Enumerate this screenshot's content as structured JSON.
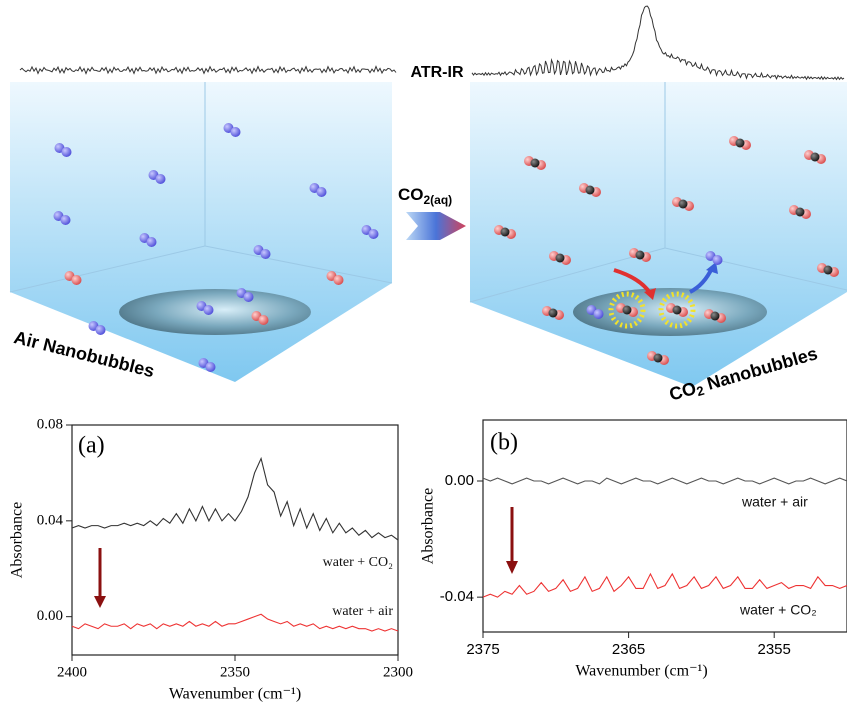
{
  "illustration": {
    "spectrum_label": "ATR-IR",
    "transfer_label": {
      "main": "CO",
      "sub": "2(aq)"
    },
    "left_label": "Air Nanobubbles",
    "right_label": {
      "main": "CO",
      "sub": "2",
      "rest": " Nanobubbles"
    }
  },
  "chart_data": [
    {
      "type": "line",
      "panel_label": "(a)",
      "xlabel": "Wavenumber (cm⁻¹)",
      "ylabel": "Absorbance",
      "xlim": [
        2400,
        2300
      ],
      "xticks": [
        2400,
        2350,
        2300
      ],
      "ylim": [
        -0.016,
        0.08
      ],
      "yticks": [
        {
          "value": 0,
          "label": "0.00"
        },
        {
          "value": 0.04,
          "label": "0.04"
        },
        {
          "value": 0.08,
          "label": "0.08"
        }
      ],
      "x": [
        2400,
        2398,
        2396,
        2394,
        2392,
        2390,
        2388,
        2386,
        2384,
        2382,
        2380,
        2378,
        2376,
        2374,
        2372,
        2370,
        2368,
        2366,
        2364,
        2362,
        2360,
        2358,
        2356,
        2354,
        2352,
        2350,
        2348,
        2346,
        2344,
        2342,
        2340,
        2338,
        2336,
        2334,
        2332,
        2330,
        2328,
        2326,
        2324,
        2322,
        2320,
        2318,
        2316,
        2314,
        2312,
        2310,
        2308,
        2306,
        2304,
        2302,
        2300
      ],
      "series": [
        {
          "name": "water + CO₂",
          "color": "#333333",
          "values": [
            0.037,
            0.038,
            0.037,
            0.038,
            0.038,
            0.037,
            0.038,
            0.038,
            0.039,
            0.038,
            0.039,
            0.038,
            0.04,
            0.038,
            0.041,
            0.039,
            0.043,
            0.039,
            0.045,
            0.04,
            0.046,
            0.04,
            0.045,
            0.04,
            0.043,
            0.04,
            0.044,
            0.05,
            0.06,
            0.066,
            0.055,
            0.052,
            0.042,
            0.048,
            0.038,
            0.045,
            0.037,
            0.043,
            0.036,
            0.041,
            0.035,
            0.039,
            0.035,
            0.037,
            0.034,
            0.036,
            0.033,
            0.035,
            0.033,
            0.034,
            0.032
          ]
        },
        {
          "name": "water + air",
          "color": "#ee3333",
          "values": [
            -0.004,
            -0.005,
            -0.003,
            -0.004,
            -0.005,
            -0.003,
            -0.004,
            -0.004,
            -0.003,
            -0.005,
            -0.003,
            -0.004,
            -0.003,
            -0.005,
            -0.003,
            -0.004,
            -0.003,
            -0.004,
            -0.002,
            -0.004,
            -0.003,
            -0.004,
            -0.002,
            -0.004,
            -0.003,
            -0.003,
            -0.002,
            -0.001,
            0.0,
            0.001,
            -0.001,
            -0.002,
            -0.003,
            -0.002,
            -0.004,
            -0.003,
            -0.004,
            -0.003,
            -0.005,
            -0.004,
            -0.005,
            -0.004,
            -0.005,
            -0.004,
            -0.005,
            -0.005,
            -0.006,
            -0.005,
            -0.006,
            -0.005,
            -0.006
          ]
        }
      ]
    },
    {
      "type": "line",
      "panel_label": "(b)",
      "xlabel": "Wavenumber (cm⁻¹)",
      "ylabel": "Absorbance",
      "xlim": [
        2375,
        2350
      ],
      "xticks": [
        2375,
        2365,
        2355
      ],
      "ylim": [
        -0.052,
        0.021
      ],
      "yticks": [
        {
          "value": 0,
          "label": "0.00"
        },
        -0.04
      ],
      "x": [
        2375,
        2374.5,
        2374,
        2373.5,
        2373,
        2372.5,
        2372,
        2371.5,
        2371,
        2370.5,
        2370,
        2369.5,
        2369,
        2368.5,
        2368,
        2367.5,
        2367,
        2366.5,
        2366,
        2365.5,
        2365,
        2364.5,
        2364,
        2363.5,
        2363,
        2362.5,
        2362,
        2361.5,
        2361,
        2360.5,
        2360,
        2359.5,
        2359,
        2358.5,
        2358,
        2357.5,
        2357,
        2356.5,
        2356,
        2355.5,
        2355,
        2354.5,
        2354,
        2353.5,
        2353,
        2352.5,
        2352,
        2351.5,
        2351,
        2350.5,
        2350
      ],
      "series": [
        {
          "name": "water + air",
          "color": "#555555",
          "values": [
            0.001,
            0.0,
            0.001,
            0.0,
            -0.001,
            0.0,
            0.001,
            0.0,
            0.0,
            -0.001,
            0.0,
            0.001,
            0.0,
            -0.001,
            0.0,
            0.0,
            -0.001,
            0.001,
            0.0,
            -0.001,
            0.0,
            0.001,
            0.0,
            0.0,
            -0.001,
            0.0,
            0.001,
            0.0,
            -0.001,
            0.0,
            0.001,
            0.0,
            0.0,
            -0.001,
            0.0,
            0.001,
            0.0,
            0.0,
            -0.001,
            0.0,
            0.001,
            0.0,
            -0.001,
            0.0,
            0.0,
            0.001,
            0.0,
            -0.001,
            0.0,
            0.001,
            0.0
          ]
        },
        {
          "name": "water + CO₂",
          "color": "#ee3333",
          "values": [
            -0.04,
            -0.039,
            -0.04,
            -0.038,
            -0.039,
            -0.036,
            -0.039,
            -0.038,
            -0.035,
            -0.038,
            -0.037,
            -0.034,
            -0.038,
            -0.037,
            -0.033,
            -0.038,
            -0.037,
            -0.033,
            -0.038,
            -0.036,
            -0.033,
            -0.037,
            -0.037,
            -0.032,
            -0.037,
            -0.036,
            -0.032,
            -0.037,
            -0.036,
            -0.033,
            -0.037,
            -0.036,
            -0.033,
            -0.037,
            -0.036,
            -0.033,
            -0.037,
            -0.037,
            -0.034,
            -0.037,
            -0.036,
            -0.035,
            -0.037,
            -0.036,
            -0.036,
            -0.037,
            -0.033,
            -0.036,
            -0.036,
            -0.037,
            -0.036
          ]
        }
      ]
    }
  ]
}
